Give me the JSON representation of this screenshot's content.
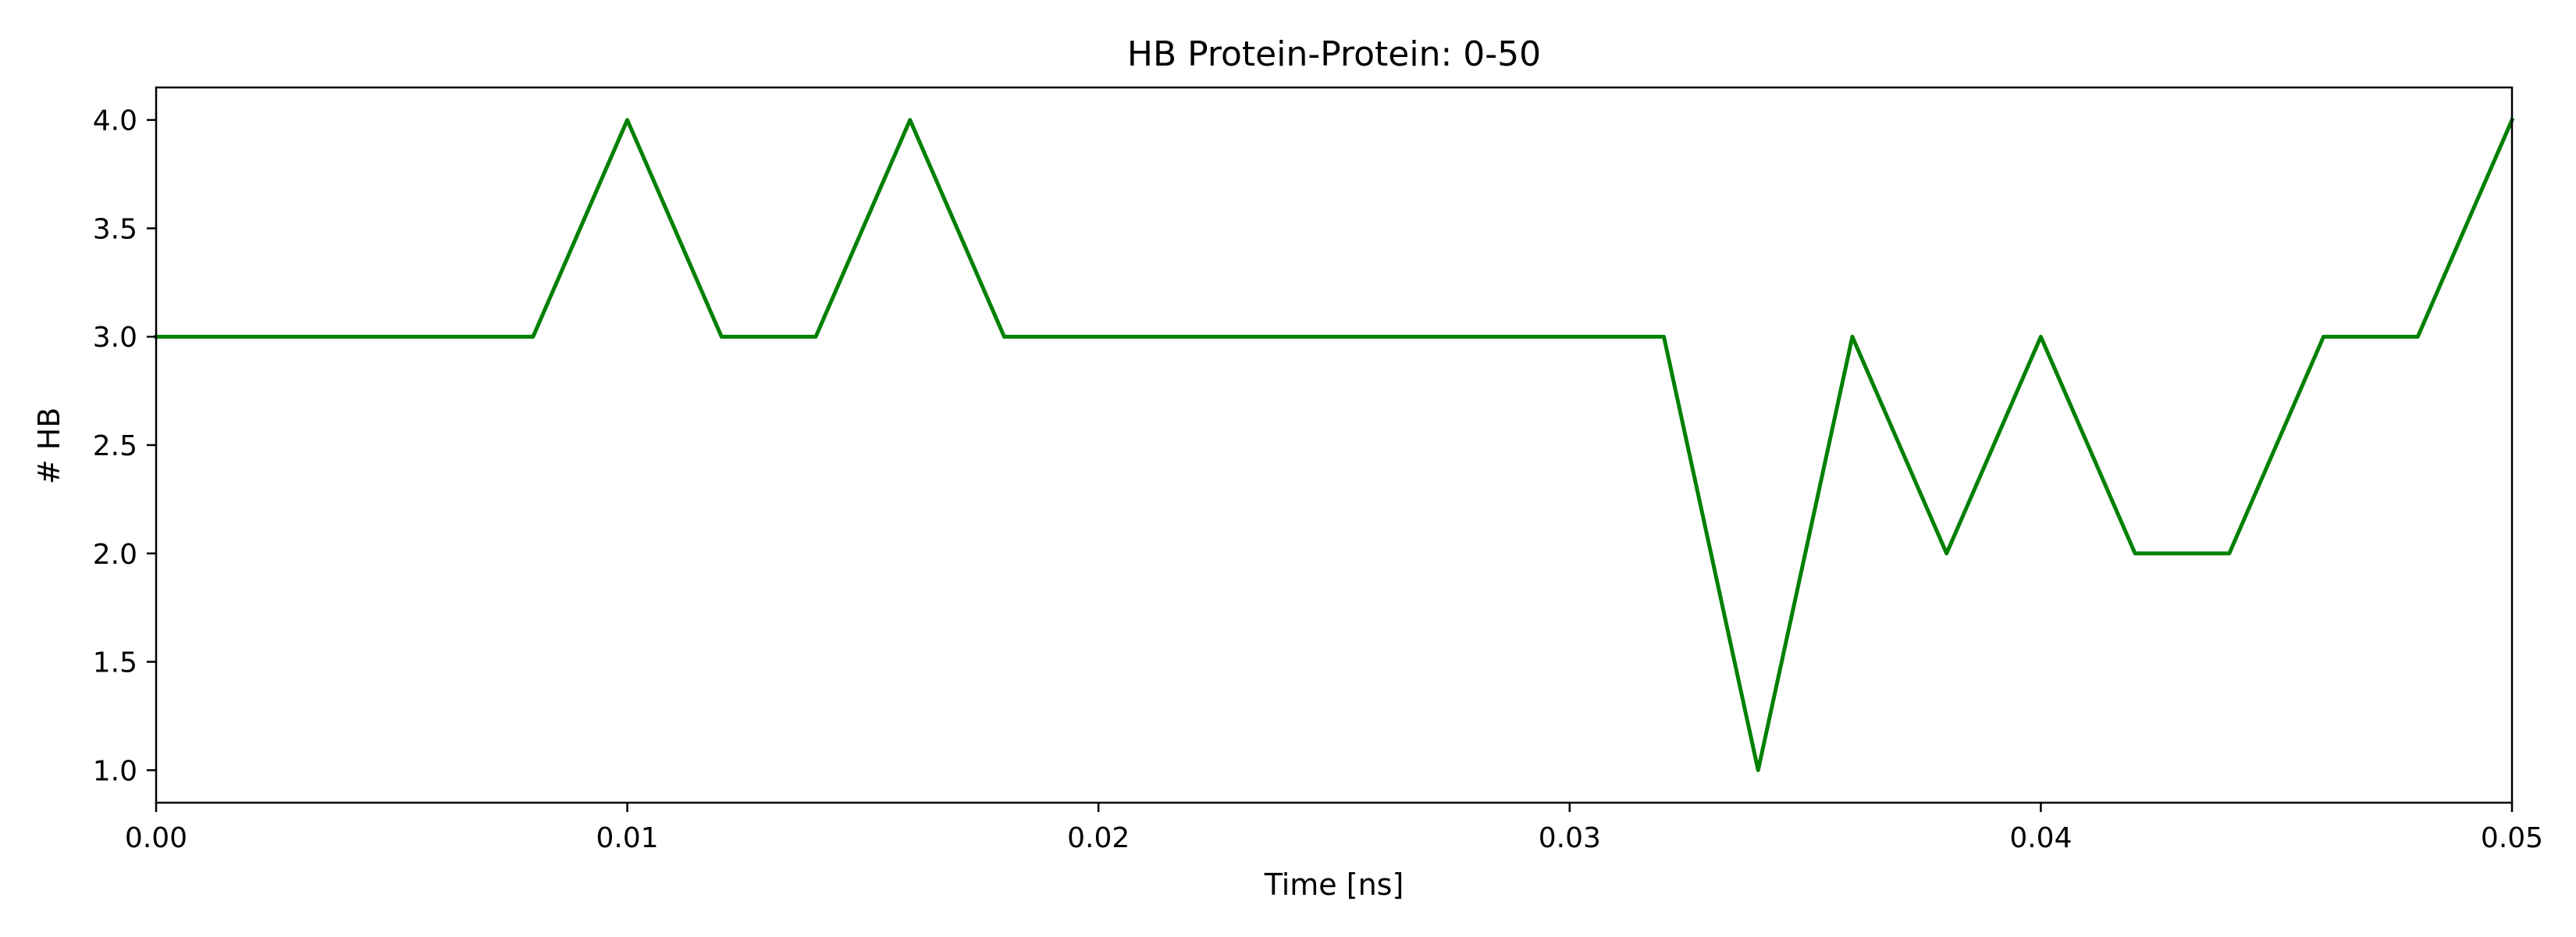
{
  "chart_data": {
    "type": "line",
    "title": "HB Protein-Protein: 0-50",
    "xlabel": "Time [ns]",
    "ylabel": "# HB",
    "xlim": [
      0.0,
      0.05
    ],
    "ylim": [
      0.85,
      4.15
    ],
    "xticks": [
      0.0,
      0.01,
      0.02,
      0.03,
      0.04,
      0.05
    ],
    "xtick_labels": [
      "0.00",
      "0.01",
      "0.02",
      "0.03",
      "0.04",
      "0.05"
    ],
    "yticks": [
      1.0,
      1.5,
      2.0,
      2.5,
      3.0,
      3.5,
      4.0
    ],
    "ytick_labels": [
      "1.0",
      "1.5",
      "2.0",
      "2.5",
      "3.0",
      "3.5",
      "4.0"
    ],
    "grid": false,
    "series": [
      {
        "color": "#008000",
        "x": [
          0.0,
          0.002,
          0.004,
          0.006,
          0.008,
          0.01,
          0.012,
          0.014,
          0.016,
          0.018,
          0.02,
          0.022,
          0.024,
          0.026,
          0.028,
          0.03,
          0.032,
          0.034,
          0.036,
          0.038,
          0.04,
          0.042,
          0.044,
          0.046,
          0.048,
          0.05
        ],
        "y": [
          3,
          3,
          3,
          3,
          3,
          4,
          3,
          3,
          4,
          3,
          3,
          3,
          3,
          3,
          3,
          3,
          3,
          1,
          3,
          2,
          3,
          2,
          2,
          3,
          3,
          4
        ]
      }
    ]
  }
}
